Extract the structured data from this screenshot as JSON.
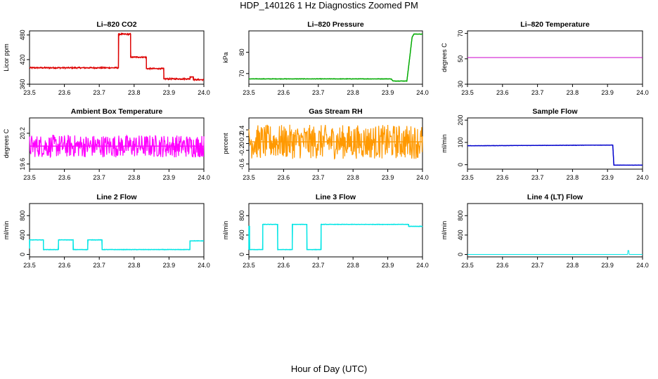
{
  "figure": {
    "title": "HDP_140126  1 Hz Diagnostics Zoomed PM",
    "xlabel": "Hour of Day (UTC)"
  },
  "chart_data": [
    {
      "type": "line",
      "title": "Li–820 CO2",
      "ylabel": "Licor ppm",
      "xlim": [
        23.5,
        24.0
      ],
      "ylim": [
        360,
        490
      ],
      "xticks": [
        "23.5",
        "23.6",
        "23.7",
        "23.8",
        "23.9",
        "24.0"
      ],
      "yticks": [
        360,
        420,
        480
      ],
      "color": "#dd0000",
      "noise": 2,
      "series": [
        {
          "x": [
            23.5,
            23.755,
            23.755,
            23.79,
            23.79,
            23.835,
            23.835,
            23.885,
            23.885,
            23.96,
            23.96,
            23.97,
            23.97,
            24.0
          ],
          "y": [
            400,
            400,
            482,
            482,
            426,
            426,
            398,
            398,
            373,
            373,
            378,
            378,
            371,
            371
          ]
        }
      ]
    },
    {
      "type": "line",
      "title": "Li–820 Pressure",
      "ylabel": "kPa",
      "xlim": [
        23.5,
        24.0
      ],
      "ylim": [
        65,
        90
      ],
      "xticks": [
        "23.5",
        "23.6",
        "23.7",
        "23.8",
        "23.9",
        "24.0"
      ],
      "yticks": [
        70,
        80
      ],
      "color": "#00aa00",
      "noise": 0.15,
      "series": [
        {
          "x": [
            23.5,
            23.91,
            23.915,
            23.955,
            23.965,
            23.97,
            23.975,
            24.0
          ],
          "y": [
            67.5,
            67.5,
            66.5,
            66.5,
            80,
            87,
            88.5,
            88.5
          ]
        }
      ]
    },
    {
      "type": "line",
      "title": "Li–820 Temperature",
      "ylabel": "degrees C",
      "xlim": [
        23.5,
        24.0
      ],
      "ylim": [
        30,
        72
      ],
      "xticks": [
        "23.5",
        "23.6",
        "23.7",
        "23.8",
        "23.9",
        "24.0"
      ],
      "yticks": [
        30,
        50,
        70
      ],
      "color": "#cc00cc",
      "noise": 0,
      "series": [
        {
          "x": [
            23.5,
            24.0
          ],
          "y": [
            51,
            51
          ]
        }
      ]
    },
    {
      "type": "line",
      "title": "Ambient Box Temperature",
      "ylabel": "degrees C",
      "xlim": [
        23.5,
        24.0
      ],
      "ylim": [
        19.5,
        20.5
      ],
      "xticks": [
        "23.5",
        "23.6",
        "23.7",
        "23.8",
        "23.9",
        "24.0"
      ],
      "yticks": [
        19.6,
        20.2
      ],
      "color": "#ff00ff",
      "noise": 0.22,
      "series": [
        {
          "x": [
            23.5,
            24.0
          ],
          "y": [
            19.95,
            19.95
          ]
        }
      ]
    },
    {
      "type": "line",
      "title": "Gas Stream RH",
      "ylabel": "percent",
      "xlim": [
        23.5,
        24.0
      ],
      "ylim": [
        -0.75,
        0.75
      ],
      "xticks": [
        "23.5",
        "23.6",
        "23.7",
        "23.8",
        "23.9",
        "24.0"
      ],
      "yticks": [
        -0.6,
        -0.2,
        0.0,
        0.2,
        0.4
      ],
      "color": "#ff9900",
      "noise": 0.5,
      "series": [
        {
          "x": [
            23.5,
            24.0
          ],
          "y": [
            0.05,
            0.05
          ]
        }
      ]
    },
    {
      "type": "line",
      "title": "Sample Flow",
      "ylabel": "ml/min",
      "xlim": [
        23.5,
        24.0
      ],
      "ylim": [
        -20,
        210
      ],
      "xticks": [
        "23.5",
        "23.6",
        "23.7",
        "23.8",
        "23.9",
        "24.0"
      ],
      "yticks": [
        0,
        100,
        200
      ],
      "color": "#0000cc",
      "noise": 1,
      "series": [
        {
          "x": [
            23.5,
            23.91,
            23.915,
            23.918,
            24.0
          ],
          "y": [
            85,
            88,
            88,
            -2,
            -2
          ]
        }
      ]
    },
    {
      "type": "line",
      "title": "Line 2 Flow",
      "ylabel": "ml/min",
      "xlim": [
        23.5,
        24.0
      ],
      "ylim": [
        -50,
        1050
      ],
      "xticks": [
        "23.5",
        "23.6",
        "23.7",
        "23.8",
        "23.9",
        "24.0"
      ],
      "yticks": [
        0,
        400,
        800
      ],
      "color": "#00e5e5",
      "noise": 6,
      "series": [
        {
          "x": [
            23.5,
            23.5,
            23.54,
            23.54,
            23.583,
            23.583,
            23.625,
            23.625,
            23.667,
            23.667,
            23.708,
            23.708,
            23.96,
            23.96,
            24.0
          ],
          "y": [
            120,
            300,
            300,
            100,
            100,
            300,
            300,
            100,
            100,
            300,
            300,
            100,
            100,
            280,
            280
          ]
        }
      ]
    },
    {
      "type": "line",
      "title": "Line 3 Flow",
      "ylabel": "ml/min",
      "xlim": [
        23.5,
        24.0
      ],
      "ylim": [
        -50,
        1050
      ],
      "xticks": [
        "23.5",
        "23.6",
        "23.7",
        "23.8",
        "23.9",
        "24.0"
      ],
      "yticks": [
        0,
        400,
        800
      ],
      "color": "#00e5e5",
      "noise": 6,
      "series": [
        {
          "x": [
            23.5,
            23.5,
            23.502,
            23.502,
            23.54,
            23.54,
            23.583,
            23.583,
            23.625,
            23.625,
            23.667,
            23.667,
            23.708,
            23.708,
            23.96,
            23.96,
            24.0
          ],
          "y": [
            100,
            580,
            580,
            100,
            100,
            620,
            620,
            100,
            100,
            620,
            620,
            100,
            100,
            620,
            620,
            580,
            580
          ]
        }
      ]
    },
    {
      "type": "line",
      "title": "Line 4 (LT) Flow",
      "ylabel": "ml/min",
      "xlim": [
        23.5,
        24.0
      ],
      "ylim": [
        -50,
        1050
      ],
      "xticks": [
        "23.5",
        "23.6",
        "23.7",
        "23.8",
        "23.9",
        "24.0"
      ],
      "yticks": [
        0,
        400,
        800
      ],
      "color": "#00e5e5",
      "noise": 0,
      "series": [
        {
          "x": [
            23.5,
            23.958,
            23.958,
            23.961,
            23.961,
            24.0
          ],
          "y": [
            0,
            0,
            80,
            80,
            0,
            0
          ]
        }
      ]
    }
  ]
}
